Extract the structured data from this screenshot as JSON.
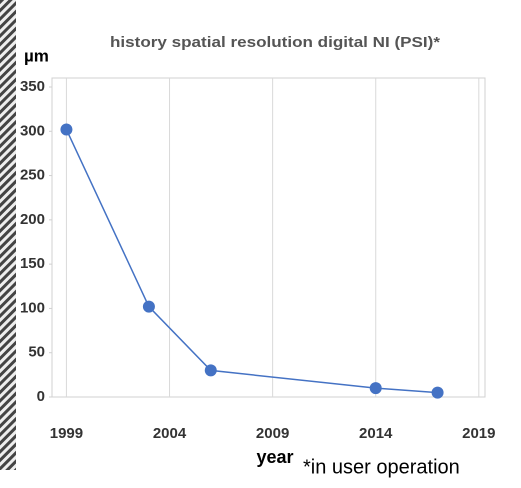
{
  "chart_data": {
    "type": "line",
    "title": "history spatial resolution digital NI (PSI)*",
    "y_label": "µm",
    "x_label": "year",
    "annotation": "*in user operation",
    "x": [
      1999,
      2003,
      2006,
      2014,
      2017
    ],
    "series": [
      {
        "name": "spatial resolution",
        "color": "#4472c4",
        "values": [
          302,
          102,
          30,
          10,
          5
        ]
      }
    ],
    "xlim": [
      1998.3,
      2019.3
    ],
    "xticks": [
      1999,
      2004,
      2009,
      2014,
      2019
    ],
    "ylim": [
      0,
      350
    ],
    "yticks": [
      0,
      50,
      100,
      150,
      200,
      250,
      300,
      350
    ],
    "xgrid": true
  }
}
